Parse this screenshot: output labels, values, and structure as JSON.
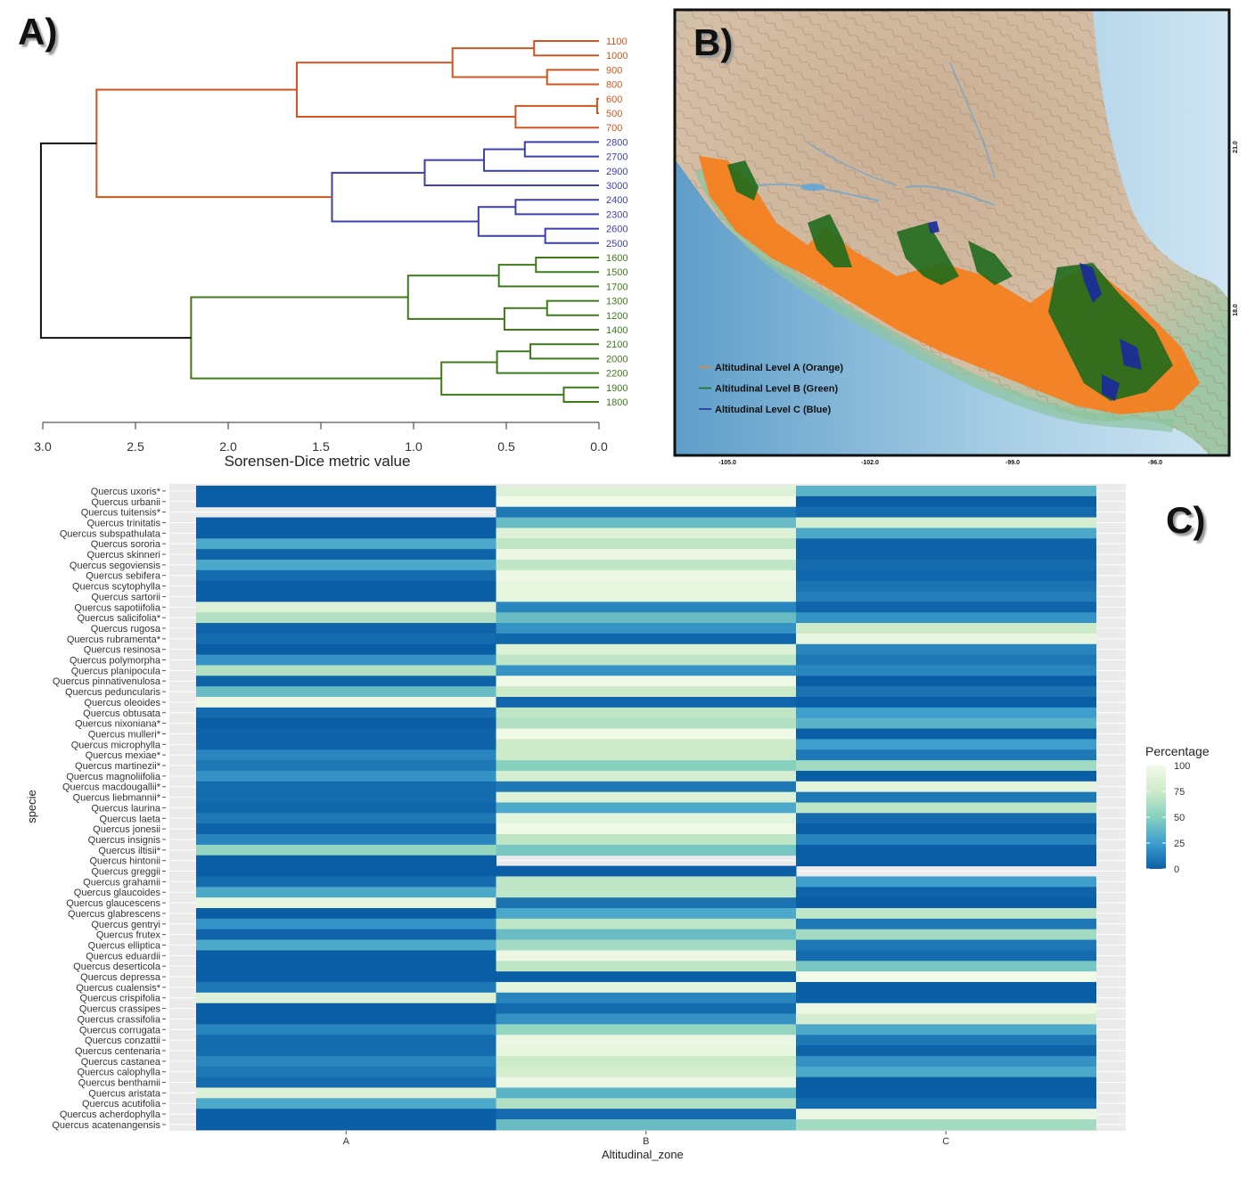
{
  "panels": {
    "a_label": "A)",
    "b_label": "B)",
    "c_label": "C)"
  },
  "colors": {
    "orange": "#d2541e",
    "blue": "#3b3fb0",
    "green": "#3d7a1a",
    "root": "#111111",
    "map_orange": "#f57f20",
    "map_green": "#1f6b1d",
    "map_blue": "#1a2a9c"
  },
  "chart_data": [
    {
      "type": "dendrogram",
      "xlabel": "Sorensen-Dice  metric value",
      "xlim": [
        3.0,
        0.0
      ],
      "xticks": [
        "3.0",
        "2.5",
        "2.0",
        "1.5",
        "1.0",
        "0.5",
        "0.0"
      ],
      "xtick_values": [
        3.0,
        2.5,
        2.0,
        1.5,
        1.0,
        0.5,
        0.0
      ],
      "leaves": [
        {
          "label": "1100",
          "group": "orange"
        },
        {
          "label": "1000",
          "group": "orange"
        },
        {
          "label": "900",
          "group": "orange"
        },
        {
          "label": "800",
          "group": "orange"
        },
        {
          "label": "600",
          "group": "orange"
        },
        {
          "label": "500",
          "group": "orange"
        },
        {
          "label": "700",
          "group": "orange"
        },
        {
          "label": "2800",
          "group": "blue"
        },
        {
          "label": "2700",
          "group": "blue"
        },
        {
          "label": "2900",
          "group": "blue"
        },
        {
          "label": "3000",
          "group": "blue"
        },
        {
          "label": "2400",
          "group": "blue"
        },
        {
          "label": "2300",
          "group": "blue"
        },
        {
          "label": "2600",
          "group": "blue"
        },
        {
          "label": "2500",
          "group": "blue"
        },
        {
          "label": "1600",
          "group": "green"
        },
        {
          "label": "1500",
          "group": "green"
        },
        {
          "label": "1700",
          "group": "green"
        },
        {
          "label": "1300",
          "group": "green"
        },
        {
          "label": "1200",
          "group": "green"
        },
        {
          "label": "1400",
          "group": "green"
        },
        {
          "label": "2100",
          "group": "green"
        },
        {
          "label": "2000",
          "group": "green"
        },
        {
          "label": "2200",
          "group": "green"
        },
        {
          "label": "1900",
          "group": "green"
        },
        {
          "label": "1800",
          "group": "green"
        }
      ],
      "merges": [
        {
          "a": [
            0
          ],
          "b": [
            1
          ],
          "height": 0.35,
          "group": "orange"
        },
        {
          "a": [
            2
          ],
          "b": [
            3
          ],
          "height": 0.28,
          "group": "orange"
        },
        {
          "a": [
            0,
            1
          ],
          "b": [
            2,
            3
          ],
          "height": 0.79,
          "group": "orange"
        },
        {
          "a": [
            4
          ],
          "b": [
            5
          ],
          "height": 0.01,
          "group": "orange"
        },
        {
          "a": [
            4,
            5
          ],
          "b": [
            6
          ],
          "height": 0.45,
          "group": "orange"
        },
        {
          "a": [
            0,
            1,
            2,
            3
          ],
          "b": [
            4,
            5,
            6
          ],
          "height": 1.63,
          "group": "orange"
        },
        {
          "a": [
            7
          ],
          "b": [
            8
          ],
          "height": 0.4,
          "group": "blue"
        },
        {
          "a": [
            7,
            8
          ],
          "b": [
            9
          ],
          "height": 0.62,
          "group": "blue"
        },
        {
          "a": [
            7,
            8,
            9
          ],
          "b": [
            10
          ],
          "height": 0.94,
          "group": "blue"
        },
        {
          "a": [
            11
          ],
          "b": [
            12
          ],
          "height": 0.45,
          "group": "blue"
        },
        {
          "a": [
            13
          ],
          "b": [
            14
          ],
          "height": 0.29,
          "group": "blue"
        },
        {
          "a": [
            11,
            12
          ],
          "b": [
            13,
            14
          ],
          "height": 0.65,
          "group": "blue"
        },
        {
          "a": [
            7,
            8,
            9,
            10
          ],
          "b": [
            11,
            12,
            13,
            14
          ],
          "height": 1.44,
          "group": "blue"
        },
        {
          "a": [
            0,
            1,
            2,
            3,
            4,
            5,
            6
          ],
          "b": [
            7,
            8,
            9,
            10,
            11,
            12,
            13,
            14
          ],
          "height": 2.71,
          "group": "orange"
        },
        {
          "a": [
            15
          ],
          "b": [
            16
          ],
          "height": 0.34,
          "group": "green"
        },
        {
          "a": [
            15,
            16
          ],
          "b": [
            17
          ],
          "height": 0.54,
          "group": "green"
        },
        {
          "a": [
            18
          ],
          "b": [
            19
          ],
          "height": 0.28,
          "group": "green"
        },
        {
          "a": [
            18,
            19
          ],
          "b": [
            20
          ],
          "height": 0.51,
          "group": "green"
        },
        {
          "a": [
            15,
            16,
            17
          ],
          "b": [
            18,
            19,
            20
          ],
          "height": 1.03,
          "group": "green"
        },
        {
          "a": [
            21
          ],
          "b": [
            22
          ],
          "height": 0.37,
          "group": "green"
        },
        {
          "a": [
            21,
            22
          ],
          "b": [
            23
          ],
          "height": 0.55,
          "group": "green"
        },
        {
          "a": [
            24
          ],
          "b": [
            25
          ],
          "height": 0.19,
          "group": "green"
        },
        {
          "a": [
            21,
            22,
            23
          ],
          "b": [
            24,
            25
          ],
          "height": 0.85,
          "group": "green"
        },
        {
          "a": [
            15,
            16,
            17,
            18,
            19,
            20
          ],
          "b": [
            21,
            22,
            23,
            24,
            25
          ],
          "height": 2.2,
          "group": "green"
        },
        {
          "a": [
            0,
            1,
            2,
            3,
            4,
            5,
            6,
            7,
            8,
            9,
            10,
            11,
            12,
            13,
            14
          ],
          "b": [
            15,
            16,
            17,
            18,
            19,
            20,
            21,
            22,
            23,
            24,
            25
          ],
          "height": 3.01,
          "group": "root"
        }
      ]
    },
    {
      "type": "map",
      "legend": [
        "Altitudinal Level A (Orange)",
        "Altitudinal Level B (Green)",
        "Altitudinal Level C (Blue)"
      ],
      "legend_colors": [
        "#f57f20",
        "#1f6b1d",
        "#1a2a9c"
      ],
      "lon_ticks": [
        "-105.0",
        "-102.0",
        "-99.0",
        "-96.0"
      ],
      "lat_ticks": [
        "21.0",
        "18.0"
      ]
    },
    {
      "type": "heatmap",
      "xlabel": "Altitudinal_zone",
      "ylabel": "specie",
      "x": [
        "A",
        "B",
        "C"
      ],
      "legend_title": "Percentage",
      "legend_ticks": [
        "100",
        "75",
        "50",
        "25",
        "0"
      ],
      "legend_tick_values": [
        100,
        75,
        50,
        25,
        0
      ],
      "colorscale": [
        "#0a5ea6",
        "#3e9fcd",
        "#86d0be",
        "#cdebc9",
        "#f2fae8"
      ],
      "rows": [
        {
          "name": "Quercus uxoris*",
          "values": [
            0,
            85,
            35
          ]
        },
        {
          "name": "Quercus urbanii",
          "values": [
            0,
            100,
            0
          ]
        },
        {
          "name": "Quercus tuitensis*",
          "values": [
            null,
            10,
            5
          ]
        },
        {
          "name": "Quercus trinitatis",
          "values": [
            0,
            40,
            80
          ]
        },
        {
          "name": "Quercus subspathulata",
          "values": [
            0,
            85,
            30
          ]
        },
        {
          "name": "Quercus sororia",
          "values": [
            30,
            70,
            2
          ]
        },
        {
          "name": "Quercus skinneri",
          "values": [
            2,
            95,
            2
          ]
        },
        {
          "name": "Quercus segoviensis",
          "values": [
            30,
            70,
            5
          ]
        },
        {
          "name": "Quercus sebifera",
          "values": [
            5,
            97,
            3
          ]
        },
        {
          "name": "Quercus scytophylla",
          "values": [
            0,
            92,
            8
          ]
        },
        {
          "name": "Quercus sartorii",
          "values": [
            0,
            92,
            12
          ]
        },
        {
          "name": "Quercus sapotiifolia",
          "values": [
            85,
            15,
            2
          ]
        },
        {
          "name": "Quercus salicifolia*",
          "values": [
            65,
            40,
            20
          ]
        },
        {
          "name": "Quercus rugosa",
          "values": [
            2,
            20,
            75
          ]
        },
        {
          "name": "Quercus rubramenta*",
          "values": [
            5,
            3,
            93
          ]
        },
        {
          "name": "Quercus resinosa",
          "values": [
            0,
            85,
            15
          ]
        },
        {
          "name": "Quercus polymorpha",
          "values": [
            20,
            70,
            10
          ]
        },
        {
          "name": "Quercus planipocula",
          "values": [
            65,
            20,
            15
          ]
        },
        {
          "name": "Quercus pinnativenulosa",
          "values": [
            2,
            98,
            0
          ]
        },
        {
          "name": "Quercus peduncularis",
          "values": [
            40,
            75,
            8
          ]
        },
        {
          "name": "Quercus oleoides",
          "values": [
            97,
            3,
            0
          ]
        },
        {
          "name": "Quercus obtusata",
          "values": [
            5,
            70,
            25
          ]
        },
        {
          "name": "Quercus nixoniana*",
          "values": [
            0,
            65,
            35
          ]
        },
        {
          "name": "Quercus mulleri*",
          "values": [
            2,
            98,
            0
          ]
        },
        {
          "name": "Quercus microphylla",
          "values": [
            2,
            75,
            25
          ]
        },
        {
          "name": "Quercus mexiae*",
          "values": [
            15,
            75,
            10
          ]
        },
        {
          "name": "Quercus martinezii*",
          "values": [
            10,
            50,
            60
          ]
        },
        {
          "name": "Quercus magnoliifolia",
          "values": [
            20,
            80,
            0
          ]
        },
        {
          "name": "Quercus macdougallii*",
          "values": [
            5,
            10,
            90
          ]
        },
        {
          "name": "Quercus liebmannii*",
          "values": [
            5,
            85,
            10
          ]
        },
        {
          "name": "Quercus laurina",
          "values": [
            3,
            30,
            70
          ]
        },
        {
          "name": "Quercus laeta",
          "values": [
            10,
            90,
            5
          ]
        },
        {
          "name": "Quercus jonesii",
          "values": [
            2,
            98,
            0
          ]
        },
        {
          "name": "Quercus insignis",
          "values": [
            15,
            70,
            15
          ]
        },
        {
          "name": "Quercus iltisii*",
          "values": [
            55,
            45,
            0
          ]
        },
        {
          "name": "Quercus hintonii",
          "values": [
            0,
            null,
            0
          ]
        },
        {
          "name": "Quercus greggii",
          "values": [
            0,
            0,
            null
          ]
        },
        {
          "name": "Quercus grahamii",
          "values": [
            5,
            70,
            25
          ]
        },
        {
          "name": "Quercus glaucoides",
          "values": [
            30,
            70,
            2
          ]
        },
        {
          "name": "Quercus glaucescens",
          "values": [
            92,
            8,
            0
          ]
        },
        {
          "name": "Quercus glabrescens",
          "values": [
            0,
            30,
            70
          ]
        },
        {
          "name": "Quercus gentryi",
          "values": [
            20,
            70,
            10
          ]
        },
        {
          "name": "Quercus frutex",
          "values": [
            2,
            40,
            60
          ]
        },
        {
          "name": "Quercus elliptica",
          "values": [
            30,
            60,
            10
          ]
        },
        {
          "name": "Quercus eduardii",
          "values": [
            0,
            95,
            5
          ]
        },
        {
          "name": "Quercus deserticola",
          "values": [
            0,
            70,
            45
          ]
        },
        {
          "name": "Quercus depressa",
          "values": [
            0,
            0,
            100
          ]
        },
        {
          "name": "Quercus cualensis*",
          "values": [
            10,
            90,
            0
          ]
        },
        {
          "name": "Quercus crispifolia",
          "values": [
            85,
            15,
            0
          ]
        },
        {
          "name": "Quercus crassipes",
          "values": [
            0,
            5,
            95
          ]
        },
        {
          "name": "Quercus crassifolia",
          "values": [
            0,
            20,
            80
          ]
        },
        {
          "name": "Quercus corrugata",
          "values": [
            15,
            55,
            30
          ]
        },
        {
          "name": "Quercus conzattii",
          "values": [
            5,
            95,
            10
          ]
        },
        {
          "name": "Quercus centenaria",
          "values": [
            5,
            93,
            2
          ]
        },
        {
          "name": "Quercus castanea",
          "values": [
            15,
            75,
            20
          ]
        },
        {
          "name": "Quercus calophylla",
          "values": [
            10,
            80,
            30
          ]
        },
        {
          "name": "Quercus benthamii",
          "values": [
            5,
            95,
            0
          ]
        },
        {
          "name": "Quercus aristata",
          "values": [
            85,
            35,
            0
          ]
        },
        {
          "name": "Quercus acutifolia",
          "values": [
            30,
            65,
            5
          ]
        },
        {
          "name": "Quercus acherdophylla",
          "values": [
            0,
            5,
            95
          ]
        },
        {
          "name": "Quercus acatenangensis",
          "values": [
            0,
            40,
            60
          ]
        }
      ]
    }
  ]
}
